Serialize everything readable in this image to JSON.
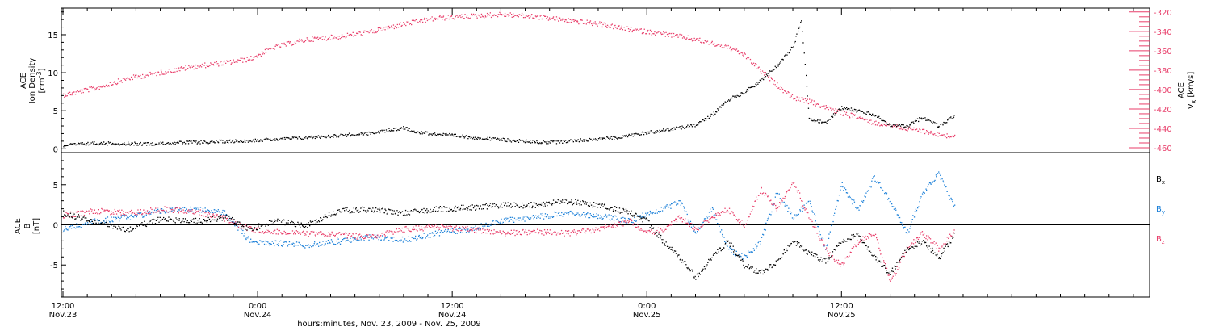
{
  "chart_data": [
    {
      "type": "scatter",
      "panel": "top",
      "ylabel_left": {
        "line1": "ACE",
        "line2": "Ion Density",
        "unit_pre": "[cm",
        "unit_sup": "-3",
        "unit_post": "]"
      },
      "ylabel_right": {
        "line1": "ACE",
        "sym": "V",
        "sub": "x",
        "unit": "[km/s]"
      },
      "ylim_left": [
        -0.5,
        18.5
      ],
      "yticks_left": [
        0,
        5,
        10,
        15
      ],
      "ylim_right": [
        -465,
        -316
      ],
      "yticks_right": [
        -320,
        -340,
        -360,
        -380,
        -400,
        -420,
        -440,
        -460
      ],
      "series": [
        {
          "axis": "left",
          "color": "#000000",
          "points": [
            [
              -24,
              0.5
            ],
            [
              -20,
              0.8
            ],
            [
              -14,
              0.7
            ],
            [
              -8,
              0.9
            ],
            [
              -2,
              1.1
            ],
            [
              4,
              1.4
            ],
            [
              10,
              1.8
            ],
            [
              14,
              2.1
            ],
            [
              16,
              2.5
            ],
            [
              18,
              2.8
            ],
            [
              20,
              2.2
            ],
            [
              24,
              1.8
            ],
            [
              28,
              1.4
            ],
            [
              32,
              1.1
            ],
            [
              36,
              0.9
            ],
            [
              40,
              1.2
            ],
            [
              44,
              1.5
            ],
            [
              48,
              2.2
            ],
            [
              52,
              2.8
            ],
            [
              54,
              3.2
            ],
            [
              56,
              4.5
            ],
            [
              58,
              6.5
            ],
            [
              60,
              7.5
            ],
            [
              62,
              9.0
            ],
            [
              64,
              11.0
            ],
            [
              66,
              13.5
            ],
            [
              67,
              17.0
            ],
            [
              68,
              4.0
            ],
            [
              70,
              3.5
            ],
            [
              72,
              5.5
            ],
            [
              74,
              5.0
            ],
            [
              76,
              4.5
            ],
            [
              78,
              3.2
            ],
            [
              80,
              3.0
            ],
            [
              82,
              4.2
            ],
            [
              84,
              3.0
            ],
            [
              86,
              4.5
            ]
          ]
        },
        {
          "axis": "right",
          "color": "#e83e6a",
          "points": [
            [
              -24,
              -405
            ],
            [
              -20,
              -398
            ],
            [
              -16,
              -388
            ],
            [
              -12,
              -382
            ],
            [
              -8,
              -376
            ],
            [
              -4,
              -372
            ],
            [
              -1,
              -368
            ],
            [
              2,
              -356
            ],
            [
              6,
              -348
            ],
            [
              10,
              -345
            ],
            [
              14,
              -340
            ],
            [
              18,
              -332
            ],
            [
              22,
              -326
            ],
            [
              26,
              -324
            ],
            [
              30,
              -322
            ],
            [
              34,
              -324
            ],
            [
              38,
              -328
            ],
            [
              42,
              -332
            ],
            [
              46,
              -338
            ],
            [
              50,
              -342
            ],
            [
              54,
              -348
            ],
            [
              58,
              -356
            ],
            [
              60,
              -364
            ],
            [
              62,
              -380
            ],
            [
              64,
              -395
            ],
            [
              66,
              -408
            ],
            [
              68,
              -412
            ],
            [
              70,
              -418
            ],
            [
              72,
              -424
            ],
            [
              74,
              -428
            ],
            [
              76,
              -434
            ],
            [
              78,
              -436
            ],
            [
              80,
              -440
            ],
            [
              82,
              -442
            ],
            [
              84,
              -446
            ],
            [
              86,
              -448
            ]
          ]
        }
      ]
    },
    {
      "type": "scatter",
      "panel": "bottom",
      "ylabel_left": {
        "line1": "ACE",
        "sym": "B",
        "unit": "[nT]"
      },
      "ylim": [
        -9,
        9
      ],
      "yticks": [
        5,
        0,
        -5
      ],
      "legend_position": "right",
      "series": [
        {
          "name": "B",
          "sub": "x",
          "color": "#000000",
          "points": [
            [
              -24,
              1.5
            ],
            [
              -20,
              0.5
            ],
            [
              -16,
              -0.5
            ],
            [
              -12,
              0.8
            ],
            [
              -8,
              0.5
            ],
            [
              -4,
              1.0
            ],
            [
              -1,
              -0.5
            ],
            [
              2,
              0.5
            ],
            [
              6,
              0.0
            ],
            [
              10,
              1.8
            ],
            [
              14,
              2.0
            ],
            [
              18,
              1.5
            ],
            [
              22,
              2.0
            ],
            [
              26,
              2.2
            ],
            [
              30,
              2.5
            ],
            [
              34,
              2.5
            ],
            [
              38,
              3.0
            ],
            [
              42,
              2.5
            ],
            [
              46,
              1.5
            ],
            [
              48,
              0.5
            ],
            [
              50,
              -2.0
            ],
            [
              52,
              -4.0
            ],
            [
              54,
              -6.5
            ],
            [
              56,
              -4.0
            ],
            [
              58,
              -2.0
            ],
            [
              60,
              -5.0
            ],
            [
              62,
              -6.0
            ],
            [
              64,
              -4.5
            ],
            [
              66,
              -2.0
            ],
            [
              68,
              -3.5
            ],
            [
              70,
              -4.5
            ],
            [
              72,
              -2.0
            ],
            [
              74,
              -1.0
            ],
            [
              76,
              -4.0
            ],
            [
              78,
              -6.0
            ],
            [
              80,
              -3.0
            ],
            [
              82,
              -2.0
            ],
            [
              84,
              -4.0
            ],
            [
              86,
              -1.0
            ]
          ]
        },
        {
          "name": "B",
          "sub": "y",
          "color": "#1a7fd8",
          "points": [
            [
              -24,
              -0.5
            ],
            [
              -20,
              0.5
            ],
            [
              -16,
              1.0
            ],
            [
              -12,
              1.8
            ],
            [
              -8,
              2.0
            ],
            [
              -4,
              1.5
            ],
            [
              -1,
              -2.0
            ],
            [
              2,
              -2.2
            ],
            [
              6,
              -2.5
            ],
            [
              10,
              -2.0
            ],
            [
              14,
              -1.5
            ],
            [
              18,
              -1.8
            ],
            [
              22,
              -1.0
            ],
            [
              26,
              -0.5
            ],
            [
              30,
              0.5
            ],
            [
              34,
              1.0
            ],
            [
              38,
              1.5
            ],
            [
              42,
              1.2
            ],
            [
              46,
              0.5
            ],
            [
              48,
              1.5
            ],
            [
              50,
              2.0
            ],
            [
              52,
              3.0
            ],
            [
              54,
              -1.0
            ],
            [
              56,
              2.0
            ],
            [
              58,
              -3.0
            ],
            [
              60,
              -4.0
            ],
            [
              62,
              -2.0
            ],
            [
              64,
              4.0
            ],
            [
              66,
              1.0
            ],
            [
              68,
              3.0
            ],
            [
              70,
              -3.0
            ],
            [
              72,
              5.0
            ],
            [
              74,
              2.0
            ],
            [
              76,
              6.0
            ],
            [
              78,
              3.0
            ],
            [
              80,
              -1.0
            ],
            [
              82,
              4.0
            ],
            [
              84,
              6.5
            ],
            [
              86,
              2.0
            ]
          ]
        },
        {
          "name": "B",
          "sub": "z",
          "color": "#e83e6a",
          "points": [
            [
              -24,
              1.2
            ],
            [
              -20,
              1.8
            ],
            [
              -16,
              1.5
            ],
            [
              -12,
              2.0
            ],
            [
              -8,
              1.8
            ],
            [
              -4,
              0.8
            ],
            [
              -1,
              -0.5
            ],
            [
              2,
              -0.8
            ],
            [
              6,
              -1.0
            ],
            [
              10,
              -1.2
            ],
            [
              14,
              -1.5
            ],
            [
              18,
              -0.5
            ],
            [
              22,
              -0.2
            ],
            [
              26,
              -0.5
            ],
            [
              30,
              -1.0
            ],
            [
              34,
              -0.8
            ],
            [
              38,
              -1.0
            ],
            [
              42,
              -0.5
            ],
            [
              46,
              0.5
            ],
            [
              48,
              -1.0
            ],
            [
              50,
              -0.5
            ],
            [
              52,
              1.0
            ],
            [
              54,
              -0.5
            ],
            [
              56,
              1.0
            ],
            [
              58,
              2.0
            ],
            [
              60,
              0.0
            ],
            [
              62,
              4.5
            ],
            [
              64,
              2.0
            ],
            [
              66,
              5.5
            ],
            [
              68,
              1.0
            ],
            [
              70,
              -3.0
            ],
            [
              72,
              -5.0
            ],
            [
              74,
              -2.0
            ],
            [
              76,
              -1.0
            ],
            [
              78,
              -7.0
            ],
            [
              80,
              -3.0
            ],
            [
              82,
              -1.0
            ],
            [
              84,
              -3.0
            ],
            [
              86,
              -0.5
            ]
          ]
        }
      ]
    }
  ],
  "x_axis": {
    "range_hours": [
      -24.2,
      110
    ],
    "ticks": [
      {
        "h": -24,
        "time": "12:00",
        "date": "Nov.23"
      },
      {
        "h": 0,
        "time": "0:00",
        "date": "Nov.24"
      },
      {
        "h": 24,
        "time": "12:00",
        "date": "Nov.24"
      },
      {
        "h": 48,
        "time": "0:00",
        "date": "Nov.25"
      },
      {
        "h": 72,
        "time": "12:00",
        "date": "Nov.25"
      }
    ],
    "xlabel": "hours:minutes, Nov. 23, 2009 - Nov. 25, 2009"
  }
}
